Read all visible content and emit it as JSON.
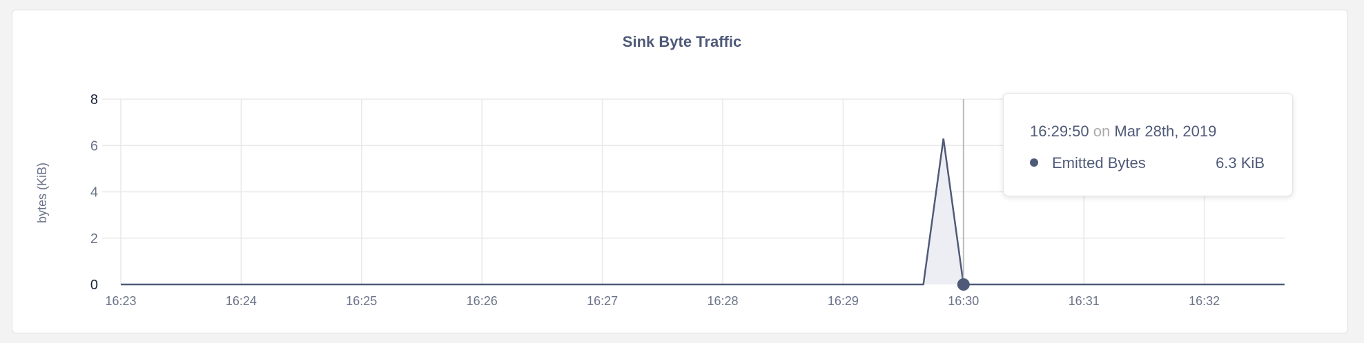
{
  "chart_data": {
    "type": "area",
    "title": "Sink Byte Traffic",
    "ylabel": "bytes (KiB)",
    "xlabel": "",
    "ylim": [
      0,
      8
    ],
    "yticks": [
      "0",
      "2",
      "4",
      "6",
      "8"
    ],
    "xticks": [
      "16:23",
      "16:24",
      "16:25",
      "16:26",
      "16:27",
      "16:28",
      "16:29",
      "16:30",
      "16:31",
      "16:32"
    ],
    "xlim": [
      "16:23:00",
      "16:32:40"
    ],
    "grid": true,
    "series": [
      {
        "name": "Emitted Bytes",
        "color": "#4f5a78",
        "points": [
          [
            "16:23:00",
            0
          ],
          [
            "16:29:40",
            0
          ],
          [
            "16:29:50",
            6.3
          ],
          [
            "16:30:00",
            0
          ],
          [
            "16:32:40",
            0
          ]
        ]
      }
    ],
    "hover_time": "16:30:00"
  },
  "tooltip": {
    "time": "16:29:50",
    "on": "on",
    "date": "Mar 28th, 2019",
    "series": "Emitted Bytes",
    "value": "6.3 KiB"
  }
}
